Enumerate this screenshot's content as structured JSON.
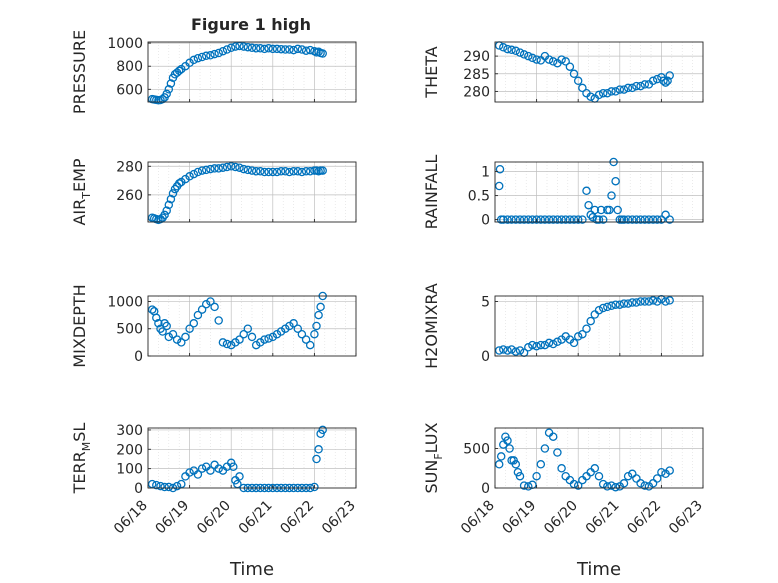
{
  "figure": {
    "title": "Figure 1 high"
  },
  "colors": {
    "marker": "#0072BD",
    "axis": "#262626",
    "grid": "#bfbfbf",
    "minor_grid": "#dcdcdc"
  },
  "chart_data": [
    {
      "type": "scatter",
      "ylabel": "PRESSURE",
      "ylabel_sub": "",
      "xlabel": "",
      "title": "Figure 1 high",
      "xlim": [
        "06/18",
        "06/23"
      ],
      "xticks": [
        "06/18",
        "06/19",
        "06/20",
        "06/21",
        "06/22",
        "06/23"
      ],
      "ylim": [
        490,
        1010
      ],
      "yticks": [
        600,
        800,
        1000
      ],
      "grid": true,
      "x": [
        0.1,
        0.15,
        0.2,
        0.25,
        0.3,
        0.35,
        0.4,
        0.45,
        0.5,
        0.55,
        0.6,
        0.65,
        0.7,
        0.75,
        0.8,
        0.9,
        1.0,
        1.1,
        1.2,
        1.3,
        1.4,
        1.5,
        1.6,
        1.7,
        1.8,
        1.9,
        2.0,
        2.1,
        2.2,
        2.3,
        2.4,
        2.5,
        2.6,
        2.7,
        2.8,
        2.9,
        3.0,
        3.1,
        3.2,
        3.3,
        3.4,
        3.5,
        3.6,
        3.7,
        3.8,
        3.9,
        4.0,
        4.05,
        4.1,
        4.15,
        4.2
      ],
      "y": [
        515,
        512,
        508,
        505,
        507,
        515,
        530,
        560,
        600,
        650,
        700,
        730,
        745,
        760,
        775,
        800,
        830,
        855,
        870,
        880,
        890,
        895,
        905,
        915,
        930,
        945,
        960,
        970,
        975,
        970,
        965,
        960,
        955,
        955,
        950,
        955,
        950,
        950,
        948,
        945,
        945,
        940,
        950,
        945,
        935,
        940,
        930,
        920,
        925,
        915,
        910
      ]
    },
    {
      "type": "scatter",
      "ylabel": "THETA",
      "ylabel_sub": "",
      "xlabel": "",
      "xlim": [
        "06/18",
        "06/23"
      ],
      "xticks": [
        "06/18",
        "06/19",
        "06/20",
        "06/21",
        "06/22",
        "06/23"
      ],
      "ylim": [
        277,
        294
      ],
      "yticks": [
        280,
        285,
        290
      ],
      "grid": true,
      "x": [
        0.1,
        0.2,
        0.3,
        0.4,
        0.5,
        0.6,
        0.7,
        0.8,
        0.9,
        1.0,
        1.1,
        1.2,
        1.3,
        1.4,
        1.5,
        1.6,
        1.7,
        1.8,
        1.9,
        2.0,
        2.1,
        2.2,
        2.3,
        2.4,
        2.5,
        2.6,
        2.7,
        2.8,
        2.9,
        3.0,
        3.1,
        3.2,
        3.3,
        3.4,
        3.5,
        3.6,
        3.7,
        3.8,
        3.9,
        4.0,
        4.05,
        4.1,
        4.15,
        4.2
      ],
      "y": [
        293,
        292.5,
        292,
        291.8,
        291.5,
        291,
        290.5,
        290,
        289.5,
        289,
        288.8,
        290,
        289,
        288.5,
        288,
        289,
        288.5,
        287,
        285,
        283,
        281,
        279.5,
        278.5,
        278,
        279,
        279.5,
        279.5,
        280,
        280,
        280.5,
        280.5,
        281,
        281,
        281.5,
        281.5,
        282,
        282,
        283,
        283.5,
        284,
        283,
        282.5,
        283,
        284.5
      ]
    },
    {
      "type": "scatter",
      "ylabel": "AIR",
      "ylabel_sub": "T",
      "ylabel_rest": "EMP",
      "xlabel": "",
      "xlim": [
        "06/18",
        "06/23"
      ],
      "xticks": [
        "06/18",
        "06/19",
        "06/20",
        "06/21",
        "06/22",
        "06/23"
      ],
      "ylim": [
        241,
        283
      ],
      "yticks": [
        260,
        280
      ],
      "grid": true,
      "x": [
        0.1,
        0.15,
        0.2,
        0.25,
        0.3,
        0.35,
        0.4,
        0.45,
        0.5,
        0.55,
        0.6,
        0.65,
        0.7,
        0.75,
        0.8,
        0.9,
        1.0,
        1.1,
        1.2,
        1.3,
        1.4,
        1.5,
        1.6,
        1.7,
        1.8,
        1.9,
        2.0,
        2.1,
        2.2,
        2.3,
        2.4,
        2.5,
        2.6,
        2.7,
        2.8,
        2.9,
        3.0,
        3.1,
        3.2,
        3.3,
        3.4,
        3.5,
        3.6,
        3.7,
        3.8,
        3.9,
        4.0,
        4.05,
        4.1,
        4.15,
        4.2
      ],
      "y": [
        244,
        243.5,
        243,
        242.5,
        243,
        244,
        246,
        249,
        253,
        257,
        261,
        264,
        266,
        268,
        269,
        271,
        273,
        274.5,
        276,
        277,
        277.5,
        278,
        278.5,
        278.5,
        279,
        279.5,
        280,
        279.5,
        279,
        278,
        277.5,
        277,
        276.5,
        276.5,
        276,
        276,
        276,
        276,
        276.5,
        276.5,
        276,
        276.5,
        276.5,
        276,
        276.5,
        276.5,
        277,
        277,
        276.5,
        277,
        277
      ]
    },
    {
      "type": "scatter",
      "ylabel": "RAINFALL",
      "ylabel_sub": "",
      "xlabel": "",
      "xlim": [
        "06/18",
        "06/23"
      ],
      "xticks": [
        "06/18",
        "06/19",
        "06/20",
        "06/21",
        "06/22",
        "06/23"
      ],
      "ylim": [
        -0.05,
        1.2
      ],
      "yticks": [
        0,
        0.5,
        1
      ],
      "grid": true,
      "x": [
        0.1,
        0.12,
        0.15,
        0.2,
        0.3,
        0.4,
        0.5,
        0.6,
        0.7,
        0.8,
        0.9,
        1.0,
        1.1,
        1.2,
        1.3,
        1.4,
        1.5,
        1.6,
        1.7,
        1.8,
        1.9,
        2.0,
        2.1,
        2.2,
        2.25,
        2.3,
        2.35,
        2.4,
        2.45,
        2.5,
        2.55,
        2.6,
        2.7,
        2.75,
        2.8,
        2.85,
        2.9,
        2.95,
        3.0,
        3.05,
        3.1,
        3.2,
        3.3,
        3.4,
        3.5,
        3.6,
        3.7,
        3.8,
        3.9,
        4.0,
        4.1,
        4.2
      ],
      "y": [
        0.7,
        1.05,
        0,
        0,
        0,
        0,
        0,
        0,
        0,
        0,
        0,
        0,
        0,
        0,
        0,
        0,
        0,
        0,
        0,
        0,
        0,
        0,
        0,
        0.6,
        0.3,
        0.1,
        0.05,
        0.2,
        0,
        0,
        0.2,
        0,
        0.2,
        0.2,
        0.5,
        1.2,
        0.8,
        0.2,
        0,
        0,
        0,
        0,
        0,
        0,
        0,
        0,
        0,
        0,
        0,
        0,
        0.1,
        0
      ]
    },
    {
      "type": "scatter",
      "ylabel": "MIXDEPTH",
      "ylabel_sub": "",
      "xlabel": "",
      "xlim": [
        "06/18",
        "06/23"
      ],
      "xticks": [
        "06/18",
        "06/19",
        "06/20",
        "06/21",
        "06/22",
        "06/23"
      ],
      "ylim": [
        0,
        1100
      ],
      "yticks": [
        0,
        500,
        1000
      ],
      "grid": true,
      "x": [
        0.1,
        0.15,
        0.2,
        0.25,
        0.3,
        0.35,
        0.4,
        0.45,
        0.5,
        0.6,
        0.7,
        0.8,
        0.9,
        1.0,
        1.1,
        1.2,
        1.3,
        1.4,
        1.5,
        1.6,
        1.7,
        1.8,
        1.9,
        2.0,
        2.1,
        2.2,
        2.3,
        2.4,
        2.5,
        2.6,
        2.7,
        2.8,
        2.9,
        3.0,
        3.1,
        3.2,
        3.3,
        3.4,
        3.5,
        3.6,
        3.7,
        3.8,
        3.9,
        4.0,
        4.05,
        4.1,
        4.15,
        4.2
      ],
      "y": [
        850,
        820,
        700,
        600,
        500,
        450,
        600,
        550,
        350,
        400,
        300,
        250,
        350,
        500,
        600,
        750,
        850,
        950,
        1000,
        900,
        650,
        250,
        220,
        200,
        250,
        300,
        400,
        500,
        350,
        200,
        250,
        300,
        320,
        350,
        400,
        450,
        500,
        550,
        600,
        500,
        400,
        300,
        200,
        400,
        550,
        750,
        900,
        1100
      ]
    },
    {
      "type": "scatter",
      "ylabel": "H2OMIXRA",
      "ylabel_sub": "",
      "xlabel": "",
      "xlim": [
        "06/18",
        "06/23"
      ],
      "xticks": [
        "06/18",
        "06/19",
        "06/20",
        "06/21",
        "06/22",
        "06/23"
      ],
      "ylim": [
        0,
        5.5
      ],
      "yticks": [
        0,
        5
      ],
      "grid": true,
      "x": [
        0.1,
        0.2,
        0.3,
        0.4,
        0.5,
        0.6,
        0.7,
        0.8,
        0.9,
        1.0,
        1.1,
        1.2,
        1.3,
        1.4,
        1.5,
        1.6,
        1.7,
        1.8,
        1.9,
        2.0,
        2.1,
        2.2,
        2.3,
        2.4,
        2.5,
        2.6,
        2.7,
        2.8,
        2.9,
        3.0,
        3.1,
        3.2,
        3.3,
        3.4,
        3.5,
        3.6,
        3.7,
        3.8,
        3.9,
        4.0,
        4.1,
        4.2
      ],
      "y": [
        0.5,
        0.6,
        0.5,
        0.6,
        0.4,
        0.5,
        0.3,
        0.8,
        1.0,
        0.9,
        1.0,
        1.0,
        1.2,
        1.1,
        1.3,
        1.5,
        1.8,
        1.5,
        1.2,
        1.8,
        2.0,
        2.5,
        3.2,
        3.8,
        4.2,
        4.4,
        4.5,
        4.6,
        4.7,
        4.7,
        4.8,
        4.8,
        4.9,
        4.9,
        5.0,
        5.0,
        5.0,
        5.1,
        5.0,
        5.2,
        5.0,
        5.1
      ]
    },
    {
      "type": "scatter",
      "ylabel": "TERR",
      "ylabel_sub": "M",
      "ylabel_rest": "SL",
      "xlabel": "Time",
      "xlim": [
        "06/18",
        "06/23"
      ],
      "xticks": [
        "06/18",
        "06/19",
        "06/20",
        "06/21",
        "06/22",
        "06/23"
      ],
      "ylim": [
        0,
        310
      ],
      "yticks": [
        0,
        100,
        200,
        300
      ],
      "grid": true,
      "x": [
        0.1,
        0.2,
        0.3,
        0.4,
        0.5,
        0.6,
        0.7,
        0.8,
        0.9,
        1.0,
        1.1,
        1.2,
        1.3,
        1.4,
        1.5,
        1.6,
        1.7,
        1.8,
        1.9,
        2.0,
        2.05,
        2.1,
        2.15,
        2.2,
        2.3,
        2.4,
        2.5,
        2.6,
        2.7,
        2.8,
        2.9,
        3.0,
        3.1,
        3.2,
        3.3,
        3.4,
        3.5,
        3.6,
        3.7,
        3.8,
        3.9,
        4.0,
        4.05,
        4.1,
        4.15,
        4.2
      ],
      "y": [
        20,
        15,
        10,
        5,
        5,
        0,
        10,
        20,
        60,
        80,
        90,
        70,
        100,
        110,
        90,
        120,
        100,
        90,
        110,
        130,
        110,
        40,
        20,
        60,
        0,
        0,
        0,
        0,
        0,
        0,
        0,
        0,
        0,
        0,
        0,
        0,
        0,
        0,
        0,
        0,
        0,
        5,
        150,
        200,
        280,
        300
      ]
    },
    {
      "type": "scatter",
      "ylabel": "SUN",
      "ylabel_sub": "F",
      "ylabel_rest": "LUX",
      "xlabel": "Time",
      "xlim": [
        "06/18",
        "06/23"
      ],
      "xticks": [
        "06/18",
        "06/19",
        "06/20",
        "06/21",
        "06/22",
        "06/23"
      ],
      "ylim": [
        0,
        760
      ],
      "yticks": [
        0,
        500
      ],
      "grid": true,
      "x": [
        0.1,
        0.15,
        0.2,
        0.25,
        0.3,
        0.35,
        0.4,
        0.45,
        0.5,
        0.55,
        0.6,
        0.7,
        0.8,
        0.9,
        1.0,
        1.1,
        1.2,
        1.3,
        1.4,
        1.5,
        1.6,
        1.7,
        1.8,
        1.9,
        2.0,
        2.1,
        2.2,
        2.3,
        2.4,
        2.5,
        2.6,
        2.7,
        2.8,
        2.9,
        3.0,
        3.1,
        3.2,
        3.3,
        3.4,
        3.5,
        3.6,
        3.7,
        3.8,
        3.9,
        4.0,
        4.1,
        4.2
      ],
      "y": [
        300,
        400,
        550,
        650,
        600,
        500,
        350,
        350,
        300,
        200,
        150,
        30,
        20,
        40,
        150,
        300,
        500,
        700,
        650,
        450,
        250,
        150,
        100,
        50,
        30,
        100,
        150,
        200,
        250,
        150,
        50,
        20,
        30,
        10,
        20,
        60,
        150,
        180,
        120,
        60,
        30,
        20,
        60,
        120,
        200,
        180,
        220
      ]
    }
  ]
}
